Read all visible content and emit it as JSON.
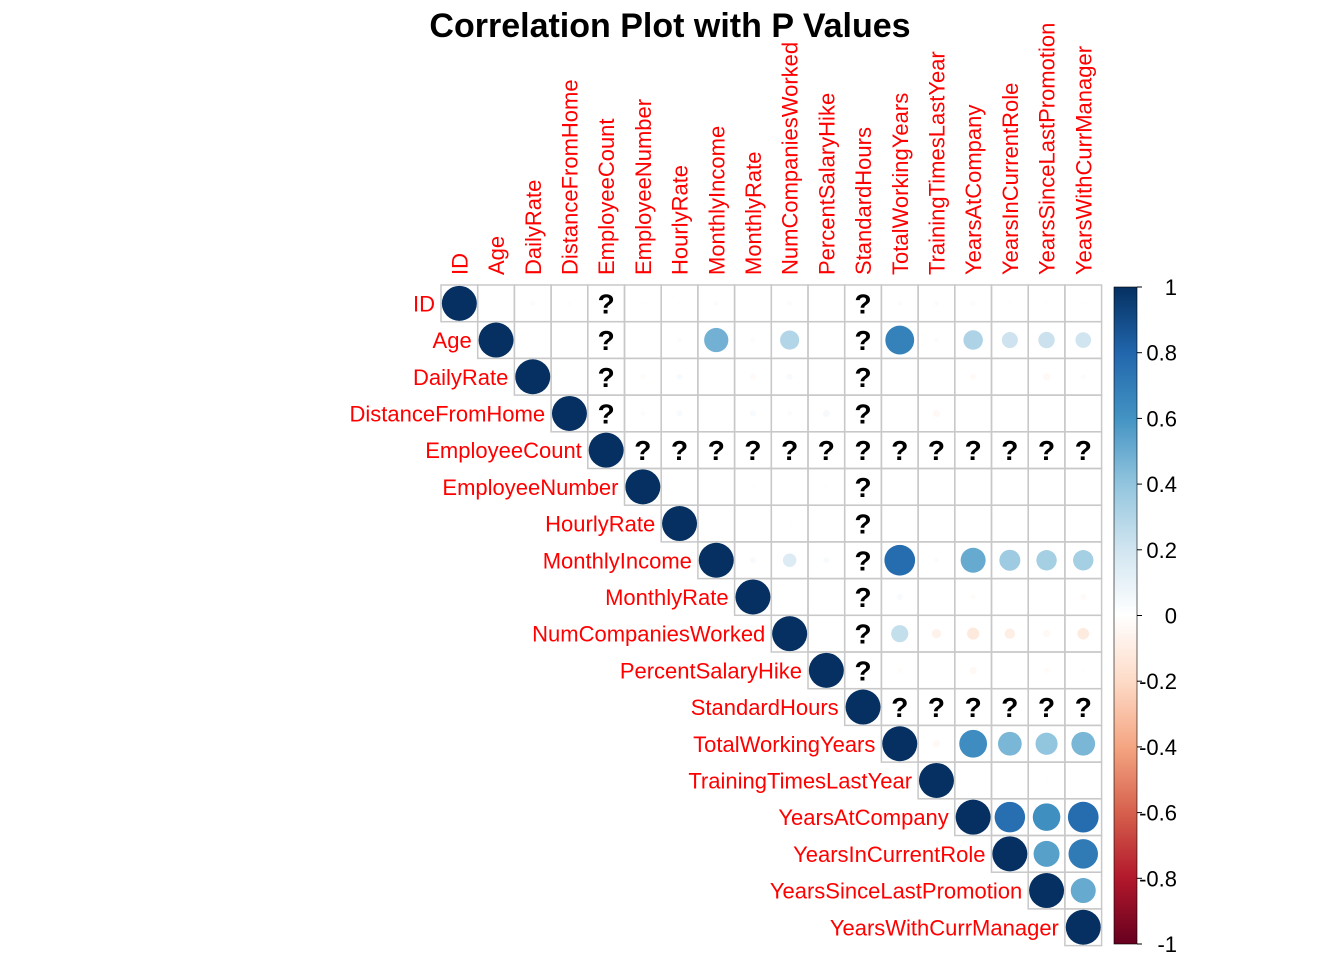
{
  "chart_data": {
    "type": "heatmap",
    "title": "Correlation Plot with P Values",
    "variables": [
      "ID",
      "Age",
      "DailyRate",
      "DistanceFromHome",
      "EmployeeCount",
      "EmployeeNumber",
      "HourlyRate",
      "MonthlyIncome",
      "MonthlyRate",
      "NumCompaniesWorked",
      "PercentSalaryHike",
      "StandardHours",
      "TotalWorkingYears",
      "TrainingTimesLastYear",
      "YearsAtCompany",
      "YearsInCurrentRole",
      "YearsSinceLastPromotion",
      "YearsWithCurrManager"
    ],
    "matrix_shape": "upper-triangular",
    "mark": "circle",
    "missing_symbol": "?",
    "colorbar": {
      "min": -1,
      "max": 1,
      "ticks": [
        "1",
        "0.8",
        "0.6",
        "0.4",
        "0.2",
        "0",
        "-0.2",
        "-0.4",
        "-0.6",
        "-0.8",
        "-1"
      ],
      "low_color": "#67001f",
      "mid_color": "#ffffff",
      "high_color": "#053061"
    },
    "cells": [
      {
        "row": "ID",
        "col": "ID",
        "r": 1.0
      },
      {
        "row": "ID",
        "col": "Age",
        "r": 0.01
      },
      {
        "row": "ID",
        "col": "DailyRate",
        "r": 0.02
      },
      {
        "row": "ID",
        "col": "DistanceFromHome",
        "r": -0.01
      },
      {
        "row": "ID",
        "col": "EmployeeCount",
        "r": null
      },
      {
        "row": "ID",
        "col": "EmployeeNumber",
        "r": 0.01
      },
      {
        "row": "ID",
        "col": "HourlyRate",
        "r": 0.01
      },
      {
        "row": "ID",
        "col": "MonthlyIncome",
        "r": 0.02
      },
      {
        "row": "ID",
        "col": "MonthlyRate",
        "r": 0.0
      },
      {
        "row": "ID",
        "col": "NumCompaniesWorked",
        "r": 0.02
      },
      {
        "row": "ID",
        "col": "PercentSalaryHike",
        "r": 0.0
      },
      {
        "row": "ID",
        "col": "StandardHours",
        "r": null
      },
      {
        "row": "ID",
        "col": "TotalWorkingYears",
        "r": 0.02
      },
      {
        "row": "ID",
        "col": "TrainingTimesLastYear",
        "r": 0.02
      },
      {
        "row": "ID",
        "col": "YearsAtCompany",
        "r": 0.02
      },
      {
        "row": "ID",
        "col": "YearsInCurrentRole",
        "r": 0.01
      },
      {
        "row": "ID",
        "col": "YearsSinceLastPromotion",
        "r": 0.01
      },
      {
        "row": "ID",
        "col": "YearsWithCurrManager",
        "r": 0.01
      },
      {
        "row": "Age",
        "col": "Age",
        "r": 1.0
      },
      {
        "row": "Age",
        "col": "DailyRate",
        "r": 0.0
      },
      {
        "row": "Age",
        "col": "DistanceFromHome",
        "r": 0.0
      },
      {
        "row": "Age",
        "col": "EmployeeCount",
        "r": null
      },
      {
        "row": "Age",
        "col": "EmployeeNumber",
        "r": 0.0
      },
      {
        "row": "Age",
        "col": "HourlyRate",
        "r": 0.02
      },
      {
        "row": "Age",
        "col": "MonthlyIncome",
        "r": 0.48
      },
      {
        "row": "Age",
        "col": "MonthlyRate",
        "r": 0.02
      },
      {
        "row": "Age",
        "col": "NumCompaniesWorked",
        "r": 0.3
      },
      {
        "row": "Age",
        "col": "PercentSalaryHike",
        "r": 0.0
      },
      {
        "row": "Age",
        "col": "StandardHours",
        "r": null
      },
      {
        "row": "Age",
        "col": "TotalWorkingYears",
        "r": 0.68
      },
      {
        "row": "Age",
        "col": "TrainingTimesLastYear",
        "r": 0.02
      },
      {
        "row": "Age",
        "col": "YearsAtCompany",
        "r": 0.31
      },
      {
        "row": "Age",
        "col": "YearsInCurrentRole",
        "r": 0.21
      },
      {
        "row": "Age",
        "col": "YearsSinceLastPromotion",
        "r": 0.22
      },
      {
        "row": "Age",
        "col": "YearsWithCurrManager",
        "r": 0.2
      },
      {
        "row": "DailyRate",
        "col": "DailyRate",
        "r": 1.0
      },
      {
        "row": "DailyRate",
        "col": "DistanceFromHome",
        "r": 0.0
      },
      {
        "row": "DailyRate",
        "col": "EmployeeCount",
        "r": null
      },
      {
        "row": "DailyRate",
        "col": "EmployeeNumber",
        "r": -0.02
      },
      {
        "row": "DailyRate",
        "col": "HourlyRate",
        "r": 0.03
      },
      {
        "row": "DailyRate",
        "col": "MonthlyIncome",
        "r": 0.0
      },
      {
        "row": "DailyRate",
        "col": "MonthlyRate",
        "r": -0.03
      },
      {
        "row": "DailyRate",
        "col": "NumCompaniesWorked",
        "r": 0.03
      },
      {
        "row": "DailyRate",
        "col": "PercentSalaryHike",
        "r": 0.0
      },
      {
        "row": "DailyRate",
        "col": "StandardHours",
        "r": null
      },
      {
        "row": "DailyRate",
        "col": "TotalWorkingYears",
        "r": 0.0
      },
      {
        "row": "DailyRate",
        "col": "TrainingTimesLastYear",
        "r": 0.0
      },
      {
        "row": "DailyRate",
        "col": "YearsAtCompany",
        "r": -0.03
      },
      {
        "row": "DailyRate",
        "col": "YearsInCurrentRole",
        "r": 0.0
      },
      {
        "row": "DailyRate",
        "col": "YearsSinceLastPromotion",
        "r": -0.04
      },
      {
        "row": "DailyRate",
        "col": "YearsWithCurrManager",
        "r": -0.02
      },
      {
        "row": "DistanceFromHome",
        "col": "DistanceFromHome",
        "r": 1.0
      },
      {
        "row": "DistanceFromHome",
        "col": "EmployeeCount",
        "r": null
      },
      {
        "row": "DistanceFromHome",
        "col": "EmployeeNumber",
        "r": 0.02
      },
      {
        "row": "DistanceFromHome",
        "col": "HourlyRate",
        "r": 0.03
      },
      {
        "row": "DistanceFromHome",
        "col": "MonthlyIncome",
        "r": 0.0
      },
      {
        "row": "DistanceFromHome",
        "col": "MonthlyRate",
        "r": 0.03
      },
      {
        "row": "DistanceFromHome",
        "col": "NumCompaniesWorked",
        "r": -0.02
      },
      {
        "row": "DistanceFromHome",
        "col": "PercentSalaryHike",
        "r": 0.04
      },
      {
        "row": "DistanceFromHome",
        "col": "StandardHours",
        "r": null
      },
      {
        "row": "DistanceFromHome",
        "col": "TotalWorkingYears",
        "r": 0.0
      },
      {
        "row": "DistanceFromHome",
        "col": "TrainingTimesLastYear",
        "r": -0.04
      },
      {
        "row": "DistanceFromHome",
        "col": "YearsAtCompany",
        "r": 0.0
      },
      {
        "row": "DistanceFromHome",
        "col": "YearsInCurrentRole",
        "r": 0.0
      },
      {
        "row": "DistanceFromHome",
        "col": "YearsSinceLastPromotion",
        "r": 0.0
      },
      {
        "row": "DistanceFromHome",
        "col": "YearsWithCurrManager",
        "r": 0.0
      },
      {
        "row": "EmployeeCount",
        "col": "EmployeeCount",
        "r": 1.0
      },
      {
        "row": "EmployeeCount",
        "col": "EmployeeNumber",
        "r": null
      },
      {
        "row": "EmployeeCount",
        "col": "HourlyRate",
        "r": null
      },
      {
        "row": "EmployeeCount",
        "col": "MonthlyIncome",
        "r": null
      },
      {
        "row": "EmployeeCount",
        "col": "MonthlyRate",
        "r": null
      },
      {
        "row": "EmployeeCount",
        "col": "NumCompaniesWorked",
        "r": null
      },
      {
        "row": "EmployeeCount",
        "col": "PercentSalaryHike",
        "r": null
      },
      {
        "row": "EmployeeCount",
        "col": "StandardHours",
        "r": null
      },
      {
        "row": "EmployeeCount",
        "col": "TotalWorkingYears",
        "r": null
      },
      {
        "row": "EmployeeCount",
        "col": "TrainingTimesLastYear",
        "r": null
      },
      {
        "row": "EmployeeCount",
        "col": "YearsAtCompany",
        "r": null
      },
      {
        "row": "EmployeeCount",
        "col": "YearsInCurrentRole",
        "r": null
      },
      {
        "row": "EmployeeCount",
        "col": "YearsSinceLastPromotion",
        "r": null
      },
      {
        "row": "EmployeeCount",
        "col": "YearsWithCurrManager",
        "r": null
      },
      {
        "row": "EmployeeNumber",
        "col": "EmployeeNumber",
        "r": 1.0
      },
      {
        "row": "EmployeeNumber",
        "col": "HourlyRate",
        "r": 0.0
      },
      {
        "row": "EmployeeNumber",
        "col": "MonthlyIncome",
        "r": 0.0
      },
      {
        "row": "EmployeeNumber",
        "col": "MonthlyRate",
        "r": 0.01
      },
      {
        "row": "EmployeeNumber",
        "col": "NumCompaniesWorked",
        "r": 0.0
      },
      {
        "row": "EmployeeNumber",
        "col": "PercentSalaryHike",
        "r": 0.01
      },
      {
        "row": "EmployeeNumber",
        "col": "StandardHours",
        "r": null
      },
      {
        "row": "EmployeeNumber",
        "col": "TotalWorkingYears",
        "r": 0.0
      },
      {
        "row": "EmployeeNumber",
        "col": "TrainingTimesLastYear",
        "r": 0.0
      },
      {
        "row": "EmployeeNumber",
        "col": "YearsAtCompany",
        "r": 0.0
      },
      {
        "row": "EmployeeNumber",
        "col": "YearsInCurrentRole",
        "r": 0.0
      },
      {
        "row": "EmployeeNumber",
        "col": "YearsSinceLastPromotion",
        "r": 0.0
      },
      {
        "row": "EmployeeNumber",
        "col": "YearsWithCurrManager",
        "r": 0.0
      },
      {
        "row": "HourlyRate",
        "col": "HourlyRate",
        "r": 1.0
      },
      {
        "row": "HourlyRate",
        "col": "MonthlyIncome",
        "r": 0.0
      },
      {
        "row": "HourlyRate",
        "col": "MonthlyRate",
        "r": 0.0
      },
      {
        "row": "HourlyRate",
        "col": "NumCompaniesWorked",
        "r": 0.01
      },
      {
        "row": "HourlyRate",
        "col": "PercentSalaryHike",
        "r": 0.0
      },
      {
        "row": "HourlyRate",
        "col": "StandardHours",
        "r": null
      },
      {
        "row": "HourlyRate",
        "col": "TotalWorkingYears",
        "r": 0.0
      },
      {
        "row": "HourlyRate",
        "col": "TrainingTimesLastYear",
        "r": 0.0
      },
      {
        "row": "HourlyRate",
        "col": "YearsAtCompany",
        "r": 0.0
      },
      {
        "row": "HourlyRate",
        "col": "YearsInCurrentRole",
        "r": 0.0
      },
      {
        "row": "HourlyRate",
        "col": "YearsSinceLastPromotion",
        "r": 0.0
      },
      {
        "row": "HourlyRate",
        "col": "YearsWithCurrManager",
        "r": 0.0
      },
      {
        "row": "MonthlyIncome",
        "col": "MonthlyIncome",
        "r": 1.0
      },
      {
        "row": "MonthlyIncome",
        "col": "MonthlyRate",
        "r": 0.03
      },
      {
        "row": "MonthlyIncome",
        "col": "NumCompaniesWorked",
        "r": 0.15
      },
      {
        "row": "MonthlyIncome",
        "col": "PercentSalaryHike",
        "r": 0.03
      },
      {
        "row": "MonthlyIncome",
        "col": "StandardHours",
        "r": null
      },
      {
        "row": "MonthlyIncome",
        "col": "TotalWorkingYears",
        "r": 0.77
      },
      {
        "row": "MonthlyIncome",
        "col": "TrainingTimesLastYear",
        "r": 0.02
      },
      {
        "row": "MonthlyIncome",
        "col": "YearsAtCompany",
        "r": 0.51
      },
      {
        "row": "MonthlyIncome",
        "col": "YearsInCurrentRole",
        "r": 0.36
      },
      {
        "row": "MonthlyIncome",
        "col": "YearsSinceLastPromotion",
        "r": 0.34
      },
      {
        "row": "MonthlyIncome",
        "col": "YearsWithCurrManager",
        "r": 0.34
      },
      {
        "row": "MonthlyRate",
        "col": "MonthlyRate",
        "r": 1.0
      },
      {
        "row": "MonthlyRate",
        "col": "NumCompaniesWorked",
        "r": 0.0
      },
      {
        "row": "MonthlyRate",
        "col": "PercentSalaryHike",
        "r": 0.0
      },
      {
        "row": "MonthlyRate",
        "col": "StandardHours",
        "r": null
      },
      {
        "row": "MonthlyRate",
        "col": "TotalWorkingYears",
        "r": 0.03
      },
      {
        "row": "MonthlyRate",
        "col": "TrainingTimesLastYear",
        "r": 0.0
      },
      {
        "row": "MonthlyRate",
        "col": "YearsAtCompany",
        "r": -0.02
      },
      {
        "row": "MonthlyRate",
        "col": "YearsInCurrentRole",
        "r": 0.0
      },
      {
        "row": "MonthlyRate",
        "col": "YearsSinceLastPromotion",
        "r": 0.0
      },
      {
        "row": "MonthlyRate",
        "col": "YearsWithCurrManager",
        "r": -0.03
      },
      {
        "row": "NumCompaniesWorked",
        "col": "NumCompaniesWorked",
        "r": 1.0
      },
      {
        "row": "NumCompaniesWorked",
        "col": "PercentSalaryHike",
        "r": 0.0
      },
      {
        "row": "NumCompaniesWorked",
        "col": "StandardHours",
        "r": null
      },
      {
        "row": "NumCompaniesWorked",
        "col": "TotalWorkingYears",
        "r": 0.24
      },
      {
        "row": "NumCompaniesWorked",
        "col": "TrainingTimesLastYear",
        "r": -0.07
      },
      {
        "row": "NumCompaniesWorked",
        "col": "YearsAtCompany",
        "r": -0.12
      },
      {
        "row": "NumCompaniesWorked",
        "col": "YearsInCurrentRole",
        "r": -0.09
      },
      {
        "row": "NumCompaniesWorked",
        "col": "YearsSinceLastPromotion",
        "r": -0.04
      },
      {
        "row": "NumCompaniesWorked",
        "col": "YearsWithCurrManager",
        "r": -0.11
      },
      {
        "row": "PercentSalaryHike",
        "col": "PercentSalaryHike",
        "r": 1.0
      },
      {
        "row": "PercentSalaryHike",
        "col": "StandardHours",
        "r": null
      },
      {
        "row": "PercentSalaryHike",
        "col": "TotalWorkingYears",
        "r": -0.02
      },
      {
        "row": "PercentSalaryHike",
        "col": "TrainingTimesLastYear",
        "r": 0.0
      },
      {
        "row": "PercentSalaryHike",
        "col": "YearsAtCompany",
        "r": -0.04
      },
      {
        "row": "PercentSalaryHike",
        "col": "YearsInCurrentRole",
        "r": 0.0
      },
      {
        "row": "PercentSalaryHike",
        "col": "YearsSinceLastPromotion",
        "r": -0.02
      },
      {
        "row": "PercentSalaryHike",
        "col": "YearsWithCurrManager",
        "r": -0.01
      },
      {
        "row": "StandardHours",
        "col": "StandardHours",
        "r": 1.0
      },
      {
        "row": "StandardHours",
        "col": "TotalWorkingYears",
        "r": null
      },
      {
        "row": "StandardHours",
        "col": "TrainingTimesLastYear",
        "r": null
      },
      {
        "row": "StandardHours",
        "col": "YearsAtCompany",
        "r": null
      },
      {
        "row": "StandardHours",
        "col": "YearsInCurrentRole",
        "r": null
      },
      {
        "row": "StandardHours",
        "col": "YearsSinceLastPromotion",
        "r": null
      },
      {
        "row": "StandardHours",
        "col": "YearsWithCurrManager",
        "r": null
      },
      {
        "row": "TotalWorkingYears",
        "col": "TotalWorkingYears",
        "r": 1.0
      },
      {
        "row": "TotalWorkingYears",
        "col": "TrainingTimesLastYear",
        "r": -0.04
      },
      {
        "row": "TotalWorkingYears",
        "col": "YearsAtCompany",
        "r": 0.63
      },
      {
        "row": "TotalWorkingYears",
        "col": "YearsInCurrentRole",
        "r": 0.46
      },
      {
        "row": "TotalWorkingYears",
        "col": "YearsSinceLastPromotion",
        "r": 0.4
      },
      {
        "row": "TotalWorkingYears",
        "col": "YearsWithCurrManager",
        "r": 0.46
      },
      {
        "row": "TrainingTimesLastYear",
        "col": "TrainingTimesLastYear",
        "r": 1.0
      },
      {
        "row": "TrainingTimesLastYear",
        "col": "YearsAtCompany",
        "r": 0.0
      },
      {
        "row": "TrainingTimesLastYear",
        "col": "YearsInCurrentRole",
        "r": 0.0
      },
      {
        "row": "TrainingTimesLastYear",
        "col": "YearsSinceLastPromotion",
        "r": 0.01
      },
      {
        "row": "TrainingTimesLastYear",
        "col": "YearsWithCurrManager",
        "r": 0.0
      },
      {
        "row": "YearsAtCompany",
        "col": "YearsAtCompany",
        "r": 1.0
      },
      {
        "row": "YearsAtCompany",
        "col": "YearsInCurrentRole",
        "r": 0.76
      },
      {
        "row": "YearsAtCompany",
        "col": "YearsSinceLastPromotion",
        "r": 0.62
      },
      {
        "row": "YearsAtCompany",
        "col": "YearsWithCurrManager",
        "r": 0.77
      },
      {
        "row": "YearsInCurrentRole",
        "col": "YearsInCurrentRole",
        "r": 1.0
      },
      {
        "row": "YearsInCurrentRole",
        "col": "YearsSinceLastPromotion",
        "r": 0.55
      },
      {
        "row": "YearsInCurrentRole",
        "col": "YearsWithCurrManager",
        "r": 0.71
      },
      {
        "row": "YearsSinceLastPromotion",
        "col": "YearsSinceLastPromotion",
        "r": 1.0
      },
      {
        "row": "YearsSinceLastPromotion",
        "col": "YearsWithCurrManager",
        "r": 0.51
      },
      {
        "row": "YearsWithCurrManager",
        "col": "YearsWithCurrManager",
        "r": 1.0
      }
    ]
  }
}
